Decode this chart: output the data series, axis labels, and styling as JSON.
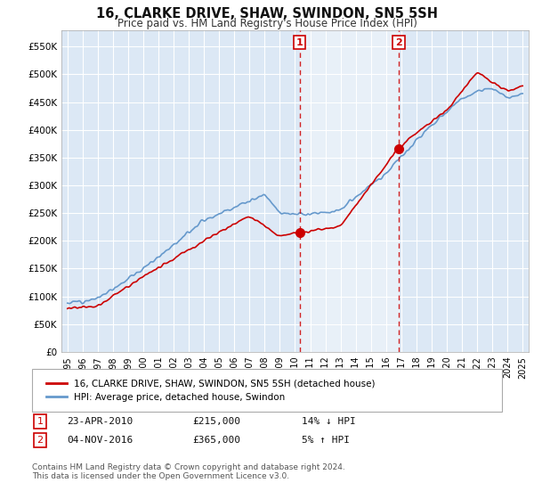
{
  "title": "16, CLARKE DRIVE, SHAW, SWINDON, SN5 5SH",
  "subtitle": "Price paid vs. HM Land Registry's House Price Index (HPI)",
  "ylabel_ticks": [
    "£0",
    "£50K",
    "£100K",
    "£150K",
    "£200K",
    "£250K",
    "£300K",
    "£350K",
    "£400K",
    "£450K",
    "£500K",
    "£550K"
  ],
  "ytick_values": [
    0,
    50000,
    100000,
    150000,
    200000,
    250000,
    300000,
    350000,
    400000,
    450000,
    500000,
    550000
  ],
  "ylim": [
    0,
    580000
  ],
  "background_color": "#ffffff",
  "grid_color": "#cccccc",
  "plot_bg": "#dce8f5",
  "shade_color": "#c8dcf0",
  "legend_label_red": "16, CLARKE DRIVE, SHAW, SWINDON, SN5 5SH (detached house)",
  "legend_label_blue": "HPI: Average price, detached house, Swindon",
  "footer": "Contains HM Land Registry data © Crown copyright and database right 2024.\nThis data is licensed under the Open Government Licence v3.0.",
  "transaction1": {
    "label": "1",
    "date": "23-APR-2010",
    "price": "£215,000",
    "hpi": "14% ↓ HPI"
  },
  "transaction2": {
    "label": "2",
    "date": "04-NOV-2016",
    "price": "£365,000",
    "hpi": "5% ↑ HPI"
  },
  "sale1_x": 2010.31,
  "sale1_y": 215000,
  "sale2_x": 2016.84,
  "sale2_y": 365000,
  "red_color": "#cc0000",
  "blue_color": "#6699cc",
  "vline_color": "#cc0000",
  "xlim_left": 1994.6,
  "xlim_right": 2025.4
}
